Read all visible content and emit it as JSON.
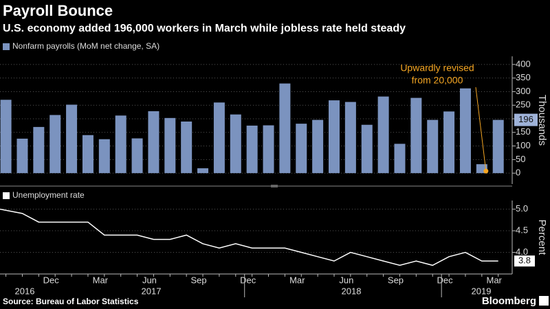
{
  "header": {
    "title": "Payroll Bounce",
    "subtitle": "U.S. economy added 196,000 workers in March while jobless rate held steady"
  },
  "footer": {
    "source": "Source: Bureau of Labor Statistics",
    "brand": "Bloomberg"
  },
  "year_labels": [
    "2016",
    "2017",
    "2018",
    "2019"
  ],
  "chart_data": [
    {
      "type": "bar",
      "categories": [
        null,
        null,
        null,
        "Dec",
        null,
        null,
        "Mar",
        null,
        null,
        "Jun",
        null,
        null,
        "Sep",
        null,
        null,
        "Dec",
        null,
        null,
        "Mar",
        null,
        null,
        "Jun",
        null,
        null,
        "Sep",
        null,
        null,
        "Dec",
        null,
        null,
        "Mar"
      ],
      "series": [
        {
          "name": "Nonfarm payrolls (MoM net change, SA)",
          "color": "#7b93bf",
          "values": [
            270,
            127,
            170,
            214,
            252,
            140,
            125,
            212,
            128,
            228,
            203,
            190,
            18,
            260,
            216,
            175,
            176,
            330,
            182,
            196,
            268,
            262,
            178,
            282,
            108,
            277,
            196,
            227,
            312,
            33,
            196
          ]
        }
      ],
      "ylim": [
        -40,
        430
      ],
      "yticks": [
        0,
        50,
        100,
        150,
        200,
        250,
        300,
        350,
        400
      ],
      "grid": true,
      "y_label": "Thousands",
      "annotation": {
        "lines": [
          "Upwardly revised",
          "from 20,000"
        ],
        "color": "#f5a623"
      }
    },
    {
      "type": "line",
      "categories": [
        null,
        null,
        null,
        "Dec",
        null,
        null,
        "Mar",
        null,
        null,
        "Jun",
        null,
        null,
        "Sep",
        null,
        null,
        "Dec",
        null,
        null,
        "Mar",
        null,
        null,
        "Jun",
        null,
        null,
        "Sep",
        null,
        null,
        "Dec",
        null,
        null,
        "Mar"
      ],
      "series": [
        {
          "name": "Unemployment rate",
          "color": "#ffffff",
          "values": [
            5.0,
            4.9,
            4.7,
            4.7,
            4.7,
            4.7,
            4.4,
            4.4,
            4.4,
            4.3,
            4.3,
            4.4,
            4.2,
            4.1,
            4.2,
            4.1,
            4.1,
            4.1,
            4.0,
            3.9,
            3.8,
            4.0,
            3.9,
            3.8,
            3.7,
            3.8,
            3.7,
            3.9,
            4.0,
            3.8,
            3.8
          ]
        }
      ],
      "ylim": [
        3.5,
        5.2
      ],
      "yticks": [
        {
          "value": 4.0,
          "label": "4.0"
        },
        {
          "value": 4.5,
          "label": "4.5"
        },
        {
          "value": 5.0,
          "label": "5.0"
        }
      ],
      "grid": true,
      "y_label": "Percent"
    }
  ]
}
